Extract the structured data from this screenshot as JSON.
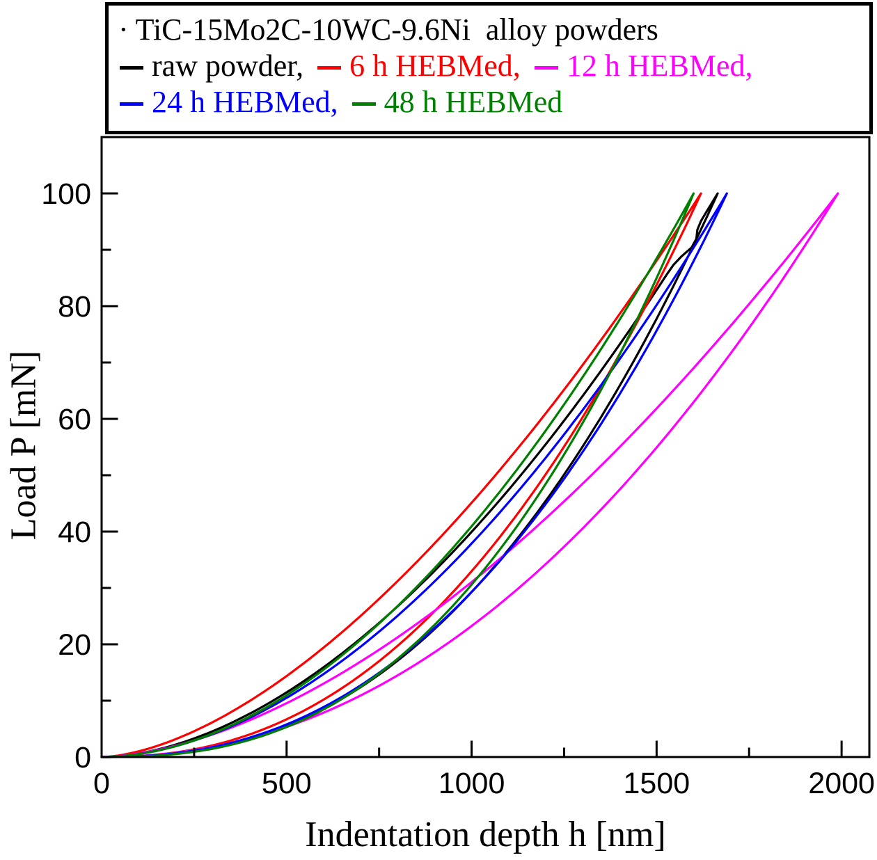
{
  "figure": {
    "background": "#FFFFFF",
    "frame_color": "#000000"
  },
  "legend": {
    "bullet": "·",
    "title": "TiC-15Mo2C-10WC-9.6Ni  alloy powders",
    "title_color": "#000000",
    "entries": [
      {
        "label": "raw powder,",
        "color": "#000000",
        "row": 2
      },
      {
        "label": "6 h HEBMed,",
        "color": "#FF0000",
        "row": 2
      },
      {
        "label": "12 h HEBMed,",
        "color": "#FF00FF",
        "row": 2
      },
      {
        "label": "24 h HEBMed,",
        "color": "#0000FF",
        "row": 3
      },
      {
        "label": "48 h HEBMed",
        "color": "#008000",
        "row": 3
      }
    ]
  },
  "chart_data": {
    "type": "line",
    "title": "",
    "xlabel": "Indentation depth h [nm]",
    "ylabel": "Load P [mN]",
    "xlim": [
      0,
      2075
    ],
    "ylim": [
      0,
      110
    ],
    "x_major_ticks": [
      0,
      500,
      1000,
      1500,
      2000
    ],
    "x_minor_ticks": [
      250,
      750,
      1250,
      1750
    ],
    "y_major_ticks": [
      0,
      20,
      40,
      60,
      80,
      100
    ],
    "y_minor_ticks": [
      10,
      30,
      50,
      70,
      90
    ],
    "grid": false,
    "legend_position": "top outside, boxed",
    "description": "Nanoindentation load-depth loading/unloading loops; all branches emanate from the origin, loading P=Pmax*(h/hmax)^n_load, unloading P=Pmax*(h/hmax)^n_unload",
    "load_levels_mN": [
      0,
      10,
      20,
      30,
      40,
      50,
      60,
      70,
      80,
      90,
      100
    ],
    "series": [
      {
        "name": "raw powder",
        "color": "#000000",
        "pmax_mN": 100,
        "hmax_nm": 1665,
        "n_load": 1.8,
        "n_unload": 2.41,
        "loading_h_nm": [
          0,
          463,
          681,
          853,
          1001,
          1133,
          1254,
          1366,
          1471,
          1570,
          1665
        ],
        "unloading_h_nm": [
          0,
          640,
          854,
          1010,
          1138,
          1249,
          1347,
          1436,
          1518,
          1594,
          1665
        ],
        "popin": {
          "load_mN": 91,
          "shift_nm": 22,
          "width_mN": 2.2
        }
      },
      {
        "name": "6 h HEBMed",
        "color": "#FF0000",
        "pmax_mN": 100,
        "hmax_nm": 1620,
        "n_load": 1.65,
        "n_unload": 2.3,
        "loading_h_nm": [
          0,
          401,
          611,
          781,
          930,
          1065,
          1188,
          1305,
          1415,
          1520,
          1620
        ],
        "unloading_h_nm": [
          0,
          595,
          805,
          960,
          1088,
          1198,
          1297,
          1387,
          1470,
          1547,
          1620
        ]
      },
      {
        "name": "12 h HEBMed",
        "color": "#FF00FF",
        "pmax_mN": 100,
        "hmax_nm": 1990,
        "n_load": 1.7,
        "n_unload": 2.12,
        "loading_h_nm": [
          0,
          514,
          772,
          980,
          1161,
          1324,
          1473,
          1613,
          1745,
          1870,
          1990
        ],
        "unloading_h_nm": [
          0,
          671,
          931,
          1128,
          1292,
          1435,
          1564,
          1682,
          1791,
          1894,
          1990
        ]
      },
      {
        "name": "24 h HEBMed",
        "color": "#0000FF",
        "pmax_mN": 100,
        "hmax_nm": 1690,
        "n_load": 1.85,
        "n_unload": 2.34,
        "loading_h_nm": [
          0,
          487,
          708,
          881,
          1030,
          1162,
          1282,
          1394,
          1498,
          1597,
          1690
        ],
        "unloading_h_nm": [
          0,
          632,
          849,
          1010,
          1142,
          1257,
          1359,
          1451,
          1536,
          1616,
          1690
        ]
      },
      {
        "name": "48 h HEBMed",
        "color": "#008000",
        "pmax_mN": 100,
        "hmax_nm": 1600,
        "n_load": 1.9,
        "n_unload": 2.52,
        "loading_h_nm": [
          0,
          476,
          686,
          849,
          988,
          1111,
          1223,
          1326,
          1423,
          1514,
          1600
        ],
        "unloading_h_nm": [
          0,
          642,
          845,
          992,
          1112,
          1215,
          1306,
          1389,
          1464,
          1535,
          1600
        ]
      }
    ]
  }
}
